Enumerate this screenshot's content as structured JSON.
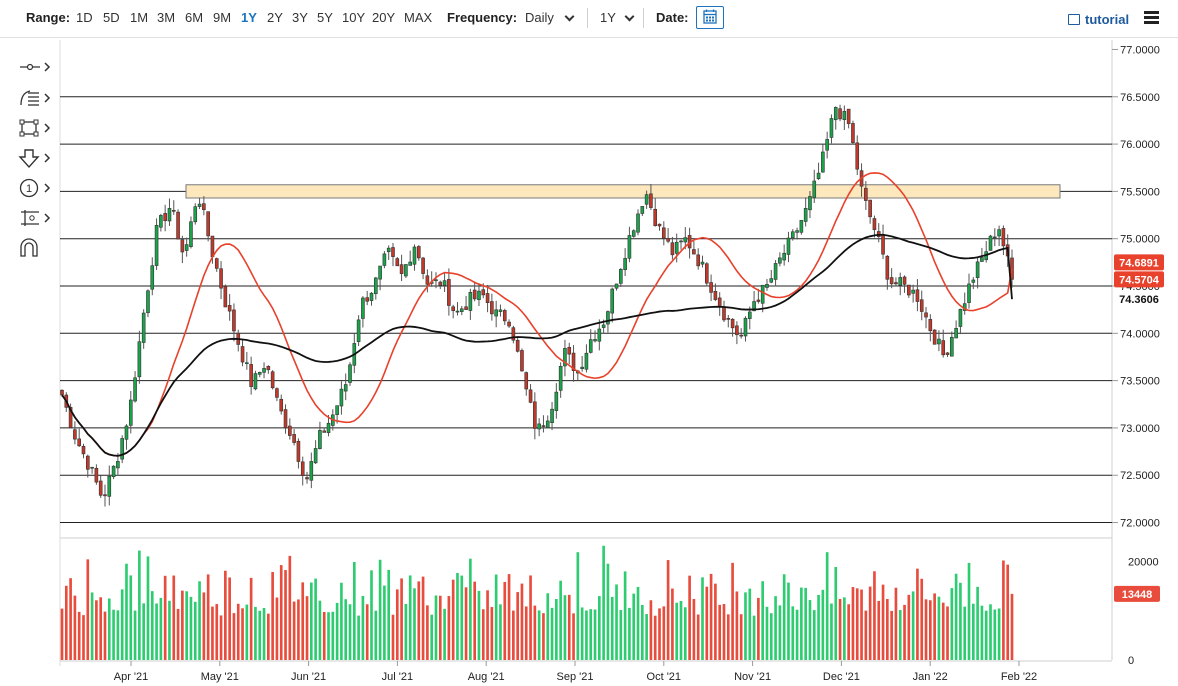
{
  "toolbar": {
    "range_label": "Range:",
    "ranges": [
      "1D",
      "5D",
      "1M",
      "3M",
      "6M",
      "9M",
      "1Y",
      "2Y",
      "3Y",
      "5Y",
      "10Y",
      "20Y",
      "MAX"
    ],
    "active_range": "1Y",
    "frequency_label": "Frequency:",
    "frequency_value": "Daily",
    "period_value": "1Y",
    "date_label": "Date:",
    "tutorial_label": "tutorial",
    "icons": [
      "calendar-icon",
      "film-icon",
      "hamburger-menu-icon"
    ]
  },
  "drawing_tools": [
    "crosshair-tool-icon",
    "fibonacci-tool-icon",
    "rectangle-tool-icon",
    "down-arrow-tool-icon",
    "annotation-number-icon",
    "measure-tool-icon",
    "magnet-icon"
  ],
  "chart_data": {
    "type": "candlestick",
    "frequency": "Daily",
    "x_tick_labels": [
      "Apr '21",
      "May '21",
      "Jun '21",
      "Jul '21",
      "Aug '21",
      "Sep '21",
      "Oct '21",
      "Nov '21",
      "Dec '21",
      "Jan '22",
      "Feb '22"
    ],
    "price_axis": {
      "ylim": [
        71.9,
        77.1
      ],
      "tick_labels": [
        "77.0000",
        "76.5000",
        "76.0000",
        "75.5000",
        "75.0000",
        "74.5000",
        "74.0000",
        "73.5000",
        "73.0000",
        "72.5000",
        "72.0000"
      ],
      "horizontal_lines": [
        76.5,
        76.0,
        75.5,
        75.0,
        74.5,
        74.0,
        73.5,
        73.0,
        72.5,
        72.0
      ]
    },
    "resistance_zone": [
      75.43,
      75.57
    ],
    "price_anchors": [
      [
        "Mar '21",
        73.35
      ],
      [
        "Mar '21",
        72.9
      ],
      [
        "Mar '21",
        72.6
      ],
      [
        "Mar '21",
        72.25
      ],
      [
        "Apr '21",
        72.65
      ],
      [
        "Apr '21",
        73.2
      ],
      [
        "Apr '21",
        74.2
      ],
      [
        "Apr '21",
        75.1
      ],
      [
        "Apr '21",
        75.35
      ],
      [
        "Apr '21",
        74.8
      ],
      [
        "Apr '21",
        75.5
      ],
      [
        "May '21",
        74.9
      ],
      [
        "May '21",
        74.35
      ],
      [
        "May '21",
        73.9
      ],
      [
        "May '21",
        73.45
      ],
      [
        "May '21",
        73.7
      ],
      [
        "May '21",
        73.2
      ],
      [
        "May '21",
        72.9
      ],
      [
        "Jun '21",
        72.45
      ],
      [
        "Jun '21",
        72.9
      ],
      [
        "Jun '21",
        73.15
      ],
      [
        "Jun '21",
        73.5
      ],
      [
        "Jun '21",
        74.3
      ],
      [
        "Jul '21",
        74.5
      ],
      [
        "Jul '21",
        74.85
      ],
      [
        "Jul '21",
        74.6
      ],
      [
        "Jul '21",
        74.95
      ],
      [
        "Jul '21",
        74.5
      ],
      [
        "Aug '21",
        74.55
      ],
      [
        "Aug '21",
        74.2
      ],
      [
        "Aug '21",
        74.35
      ],
      [
        "Aug '21",
        74.4
      ],
      [
        "Aug '21",
        74.2
      ],
      [
        "Aug '21",
        74.15
      ],
      [
        "Aug '21",
        73.5
      ],
      [
        "Sep '21",
        72.95
      ],
      [
        "Sep '21",
        73.2
      ],
      [
        "Sep '21",
        73.8
      ],
      [
        "Sep '21",
        73.6
      ],
      [
        "Sep '21",
        73.95
      ],
      [
        "Sep '21",
        74.15
      ],
      [
        "Sep '21",
        74.65
      ],
      [
        "Sep '21",
        75.1
      ],
      [
        "Oct '21",
        75.5
      ],
      [
        "Oct '21",
        75.1
      ],
      [
        "Oct '21",
        74.85
      ],
      [
        "Oct '21",
        75.0
      ],
      [
        "Oct '21",
        74.75
      ],
      [
        "Oct '21",
        74.45
      ],
      [
        "Nov '21",
        74.15
      ],
      [
        "Nov '21",
        73.95
      ],
      [
        "Nov '21",
        74.35
      ],
      [
        "Nov '21",
        74.5
      ],
      [
        "Nov '21",
        74.8
      ],
      [
        "Nov '21",
        75.05
      ],
      [
        "Dec '21",
        75.35
      ],
      [
        "Dec '21",
        75.8
      ],
      [
        "Dec '21",
        76.4
      ],
      [
        "Dec '21",
        76.2
      ],
      [
        "Dec '21",
        75.45
      ],
      [
        "Dec '21",
        75.05
      ],
      [
        "Dec '21",
        74.55
      ],
      [
        "Dec '21",
        74.5
      ],
      [
        "Jan '22",
        74.4
      ],
      [
        "Jan '22",
        74.05
      ],
      [
        "Jan '22",
        73.75
      ],
      [
        "Jan '22",
        74.15
      ],
      [
        "Jan '22",
        74.55
      ],
      [
        "Jan '22",
        74.85
      ],
      [
        "Jan '22",
        75.15
      ],
      [
        "Jan '22",
        74.57
      ]
    ],
    "indicators": [
      {
        "name": "",
        "color": "#e8412c",
        "last_value": "74.6891"
      },
      {
        "name": "",
        "color": "#111111",
        "last_value": "74.3606"
      }
    ],
    "last_price": "74.5704",
    "up_color": "#1aa34a",
    "down_color": "#c0392b",
    "volume": {
      "tick_labels": [
        "20000",
        "0"
      ],
      "ylim": [
        0,
        24000
      ],
      "last_value": "13448",
      "up_color": "#2ecc71",
      "down_color": "#e74c3c",
      "typical_range": [
        9000,
        24000
      ]
    }
  }
}
